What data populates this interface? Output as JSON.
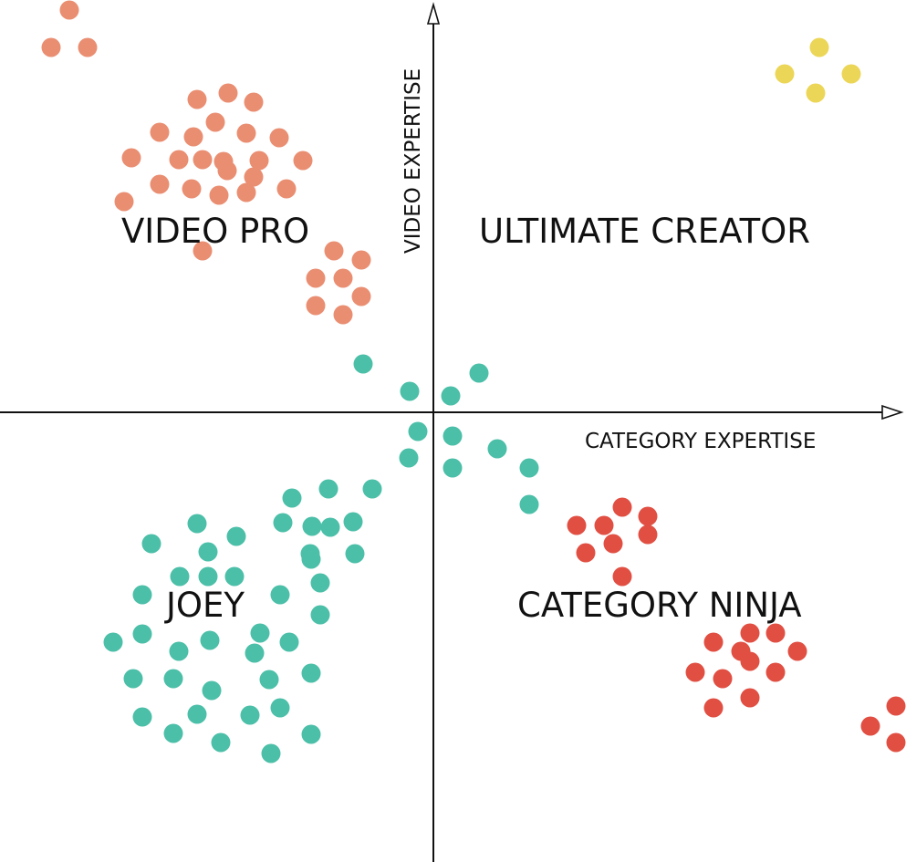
{
  "chart_data": {
    "type": "scatter",
    "title": "",
    "xlabel": "CATEGORY EXPERTISE",
    "ylabel": "VIDEO EXPERTISE",
    "grid": false,
    "legend": "none",
    "quadrant_labels": {
      "top_left": "VIDEO PRO",
      "top_right": "ULTIMATE CREATOR",
      "bottom_left": "JOEY",
      "bottom_right": "CATEGORY NINJA"
    },
    "series": [
      {
        "color": "#EA8E72",
        "points": [
          [
            -399,
            -441
          ],
          [
            -419,
            -400
          ],
          [
            -379,
            -400
          ],
          [
            -259,
            -343
          ],
          [
            -225,
            -350
          ],
          [
            -197,
            -340
          ],
          [
            -239,
            -318
          ],
          [
            -300,
            -307
          ],
          [
            -263,
            -302
          ],
          [
            -205,
            -306
          ],
          [
            -169,
            -301
          ],
          [
            -331,
            -279
          ],
          [
            -279,
            -277
          ],
          [
            -253,
            -277
          ],
          [
            -230,
            -275
          ],
          [
            -191,
            -276
          ],
          [
            -143,
            -276
          ],
          [
            -226,
            -265
          ],
          [
            -197,
            -258
          ],
          [
            -300,
            -250
          ],
          [
            -265,
            -245
          ],
          [
            -235,
            -238
          ],
          [
            -205,
            -241
          ],
          [
            -161,
            -245
          ],
          [
            -339,
            -231
          ],
          [
            -253,
            -177
          ],
          [
            -109,
            -177
          ],
          [
            -79,
            -167
          ],
          [
            -129,
            -147
          ],
          [
            -99,
            -147
          ],
          [
            -79,
            -127
          ],
          [
            -129,
            -117
          ],
          [
            -99,
            -107
          ]
        ]
      },
      {
        "color": "#ECD658",
        "points": [
          [
            423,
            -400
          ],
          [
            385,
            -371
          ],
          [
            458,
            -371
          ],
          [
            419,
            -350
          ]
        ]
      },
      {
        "color": "#4BBFA8",
        "points": [
          [
            -77,
            -53
          ],
          [
            50,
            -43
          ],
          [
            -26,
            -23
          ],
          [
            19,
            -18
          ],
          [
            -17,
            21
          ],
          [
            21,
            26
          ],
          [
            -27,
            50
          ],
          [
            70,
            40
          ],
          [
            21,
            61
          ],
          [
            105,
            61
          ],
          [
            -67,
            84
          ],
          [
            -115,
            84
          ],
          [
            -155,
            94
          ],
          [
            -88,
            120
          ],
          [
            -113,
            126
          ],
          [
            -133,
            125
          ],
          [
            -165,
            121
          ],
          [
            105,
            101
          ],
          [
            -259,
            122
          ],
          [
            -216,
            136
          ],
          [
            -309,
            144
          ],
          [
            -247,
            153
          ],
          [
            -135,
            155
          ],
          [
            -86,
            155
          ],
          [
            -247,
            180
          ],
          [
            -278,
            180
          ],
          [
            -218,
            180
          ],
          [
            -134,
            161
          ],
          [
            -124,
            187
          ],
          [
            -319,
            200
          ],
          [
            -168,
            200
          ],
          [
            -124,
            222
          ],
          [
            -319,
            243
          ],
          [
            -351,
            252
          ],
          [
            -190,
            242
          ],
          [
            -158,
            252
          ],
          [
            -279,
            262
          ],
          [
            -245,
            250
          ],
          [
            -196,
            264
          ],
          [
            -134,
            286
          ],
          [
            -329,
            292
          ],
          [
            -285,
            292
          ],
          [
            -243,
            305
          ],
          [
            -180,
            293
          ],
          [
            -319,
            334
          ],
          [
            -259,
            331
          ],
          [
            -201,
            332
          ],
          [
            -168,
            324
          ],
          [
            -285,
            352
          ],
          [
            -233,
            362
          ],
          [
            -134,
            353
          ],
          [
            -178,
            374
          ]
        ]
      },
      {
        "color": "#E14F43",
        "points": [
          [
            207,
            104
          ],
          [
            157,
            124
          ],
          [
            187,
            124
          ],
          [
            235,
            114
          ],
          [
            235,
            134
          ],
          [
            197,
            144
          ],
          [
            167,
            154
          ],
          [
            207,
            180
          ],
          [
            347,
            242
          ],
          [
            375,
            242
          ],
          [
            307,
            252
          ],
          [
            337,
            262
          ],
          [
            399,
            262
          ],
          [
            347,
            273
          ],
          [
            287,
            285
          ],
          [
            317,
            292
          ],
          [
            375,
            285
          ],
          [
            507,
            322
          ],
          [
            307,
            324
          ],
          [
            347,
            313
          ],
          [
            479,
            344
          ],
          [
            507,
            362
          ]
        ]
      }
    ]
  }
}
